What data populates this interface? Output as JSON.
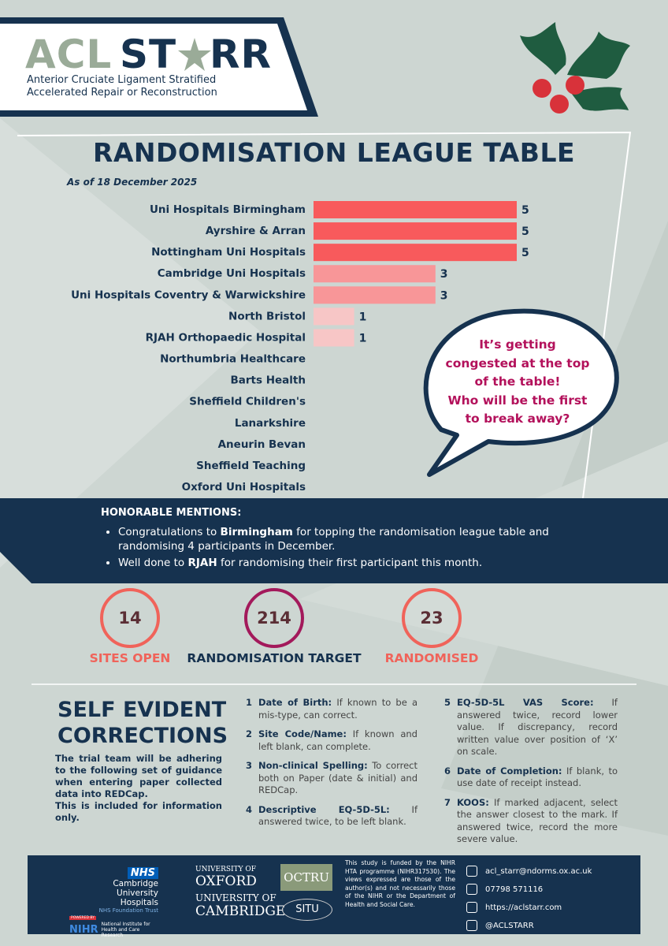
{
  "header": {
    "logo_left": "ACL",
    "logo_mid": "ST",
    "logo_right": "RR",
    "tagline_1": "Anterior Cruciate Ligament Stratified",
    "tagline_2": "Accelerated Repair or Reconstruction"
  },
  "chart_data": {
    "type": "bar",
    "title": "RANDOMISATION LEAGUE TABLE",
    "subtitle": "As of 18 December 2025",
    "categories": [
      "Uni Hospitals Birmingham",
      "Ayrshire & Arran",
      "Nottingham Uni Hospitals",
      "Cambridge Uni Hospitals",
      "Uni Hospitals Coventry & Warwickshire",
      "North Bristol",
      "RJAH Orthopaedic Hospital",
      "Northumbria Healthcare",
      "Barts Health",
      "Sheffield Children's",
      "Lanarkshire",
      "Aneurin Bevan",
      "Sheffield Teaching",
      "Oxford Uni Hospitals"
    ],
    "values": [
      5,
      5,
      5,
      3,
      3,
      1,
      1,
      0,
      0,
      0,
      0,
      0,
      0,
      0
    ],
    "colors": [
      "#f85a5c",
      "#f85a5c",
      "#f85a5c",
      "#f89698",
      "#f89698",
      "#f7c6c6",
      "#f7c6c6",
      "#f7c6c6",
      "#f7c6c6",
      "#f7c6c6",
      "#f7c6c6",
      "#f7c6c6",
      "#f7c6c6",
      "#f7c6c6"
    ],
    "xlim": [
      0,
      5
    ],
    "annotation": [
      "It’s getting",
      "congested at the top",
      "of the table!",
      "Who will be the first",
      "to break away?"
    ]
  },
  "mentions": {
    "title": "HONORABLE MENTIONS:",
    "items": [
      {
        "text_1": "Congratulations to ",
        "bold": "Birmingham",
        "text_2": " for topping the randomisation league table and randomising 4 participants in December."
      },
      {
        "text_1": "Well done to ",
        "bold": "RJAH",
        "text_2": " for randomising their first participant this month."
      }
    ]
  },
  "stats": [
    {
      "value": 14,
      "label": "SITES OPEN",
      "color": "#f0635a",
      "label_color": "#f0635a"
    },
    {
      "value": 214,
      "label": "RANDOMISATION TARGET",
      "color": "#a3195b",
      "label_color": "#16324f"
    },
    {
      "value": 23,
      "label": "RANDOMISED",
      "color": "#f0635a",
      "label_color": "#f0635a"
    }
  ],
  "corrections": {
    "title_1": "SELF EVIDENT",
    "title_2": "CORRECTIONS",
    "intro": "The trial team will be adhering to the following set of guidance when entering paper collected data into REDCap.",
    "note": "This is included for information only.",
    "items": [
      {
        "number": 1,
        "term": "Date of Birth:",
        "text": " If known to be a mis-type, can correct."
      },
      {
        "number": 2,
        "term": "Site Code/Name:",
        "text": " If known and left blank, can complete."
      },
      {
        "number": 3,
        "term": "Non-clinical Spelling:",
        "text": " To correct both on Paper (date & initial) and REDCap."
      },
      {
        "number": 4,
        "term": "Descriptive EQ-5D-5L:",
        "text": " If answered twice, to be left blank."
      },
      {
        "number": 5,
        "term": "EQ-5D-5L VAS Score:",
        "text": " If answered twice, record lower value. If discrepancy, record written value over position of ‘X’ on scale."
      },
      {
        "number": 6,
        "term": "Date of Completion:",
        "text": " If blank, to use date of receipt instead."
      },
      {
        "number": 7,
        "term": "KOOS:",
        "text": " If marked adjacent, select the answer closest to the mark. If answered twice, record the more severe value."
      }
    ]
  },
  "footer": {
    "nhs": "NHS",
    "cuh_1": "Cambridge",
    "cuh_2": "University Hospitals",
    "cuh_3": "NHS Foundation Trust",
    "nihr_badge": "POWERED BY",
    "nihr": "NIHR",
    "nihr_name": "National Institute for Health and Care Research",
    "oxford_1": "UNIVERSITY OF",
    "oxford_2": "OXFORD",
    "cambridge_1": "UNIVERSITY OF",
    "cambridge_2": "CAMBRIDGE",
    "octru": "OCTRU",
    "situ": "SITU",
    "funding": "This study is funded by the NIHR HTA programme (NIHR317530). The views expressed are those of the author(s) and not necessarily those of the NIHR or the Department of Health and Social Care.",
    "contacts": [
      "acl_starr@ndorms.ox.ac.uk",
      "07798 571116",
      "https://aclstarr.com",
      "@ACLSTARR"
    ]
  }
}
